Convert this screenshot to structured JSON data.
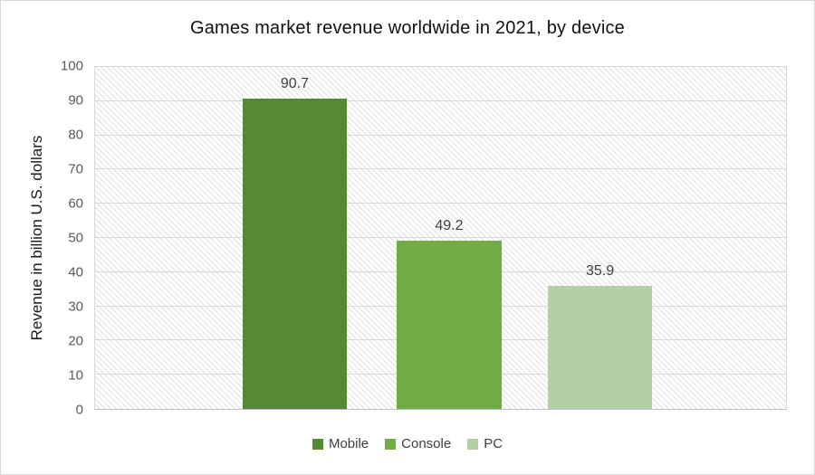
{
  "chart_data": {
    "type": "bar",
    "title": "Games market revenue worldwide in 2021, by device",
    "ylabel": "Revenue in billion U.S. dollars",
    "xlabel": "",
    "categories": [
      "Mobile",
      "Console",
      "PC"
    ],
    "values": [
      90.7,
      49.2,
      35.9
    ],
    "value_labels": [
      "90.7",
      "49.2",
      "35.9"
    ],
    "colors": [
      "#568836",
      "#70ad47",
      "#b4cfa4"
    ],
    "ylim": [
      0,
      100
    ],
    "ytick_step": 10,
    "yticks": [
      0,
      10,
      20,
      30,
      40,
      50,
      60,
      70,
      80,
      90,
      100
    ],
    "grid": true,
    "gridline_color": "#d9d9d9",
    "tick_label_color": "#595959",
    "value_label_color": "#404040",
    "plot_background": "light-downward-diagonal-hatch",
    "legend_position": "bottom"
  }
}
